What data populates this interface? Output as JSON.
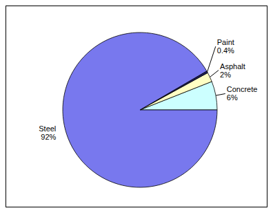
{
  "chart_data": {
    "type": "pie",
    "categories": [
      "Concrete",
      "Asphalt",
      "Paint",
      "Steel"
    ],
    "values": [
      6,
      2,
      0.4,
      92
    ],
    "value_labels": [
      "6%",
      "2%",
      "0.4%",
      "92%"
    ],
    "colors": [
      "#ccffff",
      "#ffffc4",
      "#20205e",
      "#7878ee"
    ]
  }
}
